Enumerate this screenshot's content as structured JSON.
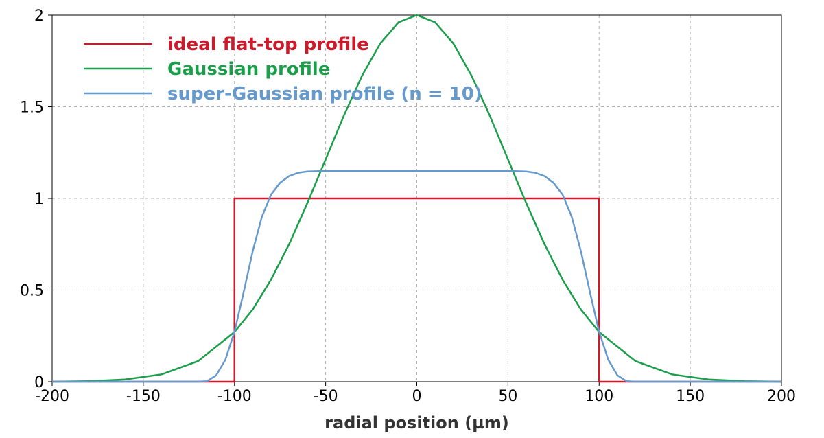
{
  "chart_data": {
    "type": "line",
    "xlabel": "radial position (µm)",
    "ylabel": "",
    "xlim": [
      -200,
      200
    ],
    "ylim": [
      0,
      2
    ],
    "x_ticks": [
      -200,
      -150,
      -100,
      -50,
      0,
      50,
      100,
      150,
      200
    ],
    "x_tick_labels": [
      "-200",
      "-150",
      "-100",
      "-50",
      "0",
      "50",
      "100",
      "150",
      "200"
    ],
    "y_ticks": [
      0,
      0.5,
      1,
      1.5,
      2
    ],
    "y_tick_labels": [
      "0",
      "0.5",
      "1",
      "1.5",
      "2"
    ],
    "grid": true,
    "legend_position": "top-left",
    "series": [
      {
        "name": "ideal flat-top profile",
        "color": "#cc1a2b",
        "x": [
          -200,
          -100,
          -100,
          100,
          100,
          200
        ],
        "y": [
          0,
          0,
          1,
          1,
          0,
          0
        ]
      },
      {
        "name": "Gaussian profile",
        "color": "#1a9e4a",
        "x": [
          -200,
          -180,
          -160,
          -140,
          -120,
          -100,
          -90,
          -80,
          -70,
          -60,
          -50,
          -40,
          -30,
          -20,
          -10,
          0,
          10,
          20,
          30,
          40,
          50,
          60,
          70,
          80,
          90,
          100,
          120,
          140,
          160,
          180,
          200
        ],
        "y": [
          0.0,
          0.003,
          0.012,
          0.04,
          0.112,
          0.271,
          0.394,
          0.556,
          0.751,
          0.975,
          1.213,
          1.452,
          1.67,
          1.846,
          1.961,
          2.0,
          1.961,
          1.846,
          1.67,
          1.452,
          1.213,
          0.975,
          0.751,
          0.556,
          0.394,
          0.271,
          0.112,
          0.04,
          0.012,
          0.003,
          0.0
        ]
      },
      {
        "name": "super-Gaussian profile (n = 10)",
        "color": "#6699cc",
        "x": [
          -200,
          -120,
          -115,
          -110,
          -105,
          -100,
          -95,
          -90,
          -85,
          -80,
          -75,
          -70,
          -65,
          -60,
          -50,
          0,
          50,
          60,
          65,
          70,
          75,
          80,
          85,
          90,
          95,
          100,
          105,
          110,
          115,
          120,
          200
        ],
        "y": [
          0.0,
          0.0,
          0.003,
          0.035,
          0.12,
          0.272,
          0.487,
          0.712,
          0.899,
          1.02,
          1.085,
          1.122,
          1.14,
          1.147,
          1.15,
          1.15,
          1.15,
          1.147,
          1.14,
          1.122,
          1.085,
          1.02,
          0.899,
          0.712,
          0.487,
          0.272,
          0.12,
          0.035,
          0.003,
          0.0,
          0.0
        ]
      }
    ]
  }
}
